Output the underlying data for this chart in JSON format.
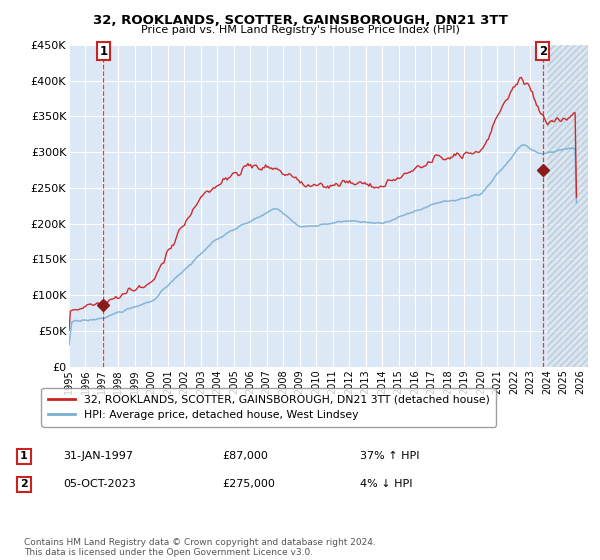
{
  "title": "32, ROOKLANDS, SCOTTER, GAINSBOROUGH, DN21 3TT",
  "subtitle": "Price paid vs. HM Land Registry's House Price Index (HPI)",
  "legend_line1": "32, ROOKLANDS, SCOTTER, GAINSBOROUGH, DN21 3TT (detached house)",
  "legend_line2": "HPI: Average price, detached house, West Lindsey",
  "annotation1_label": "1",
  "annotation1_date": "31-JAN-1997",
  "annotation1_price": "£87,000",
  "annotation1_hpi": "37% ↑ HPI",
  "annotation2_label": "2",
  "annotation2_date": "05-OCT-2023",
  "annotation2_price": "£275,000",
  "annotation2_hpi": "4% ↓ HPI",
  "footer": "Contains HM Land Registry data © Crown copyright and database right 2024.\nThis data is licensed under the Open Government Licence v3.0.",
  "hpi_color": "#7bafd4",
  "price_color": "#cc2222",
  "marker_color": "#8b1a1a",
  "dashed_color": "#cc2222",
  "bg_color": "#dce8f5",
  "grid_color": "#ffffff",
  "hatch_color": "#c0c8d8",
  "ylim": [
    0,
    450000
  ],
  "yticks": [
    0,
    50000,
    100000,
    150000,
    200000,
    250000,
    300000,
    350000,
    400000,
    450000
  ],
  "ytick_labels": [
    "£0",
    "£50K",
    "£100K",
    "£150K",
    "£200K",
    "£250K",
    "£300K",
    "£350K",
    "£400K",
    "£450K"
  ],
  "sale1_x": 1997.08,
  "sale1_y": 87000,
  "sale2_x": 2023.75,
  "sale2_y": 275000,
  "hatch_start": 2024.0,
  "xmin": 1995.0,
  "xmax": 2026.5
}
